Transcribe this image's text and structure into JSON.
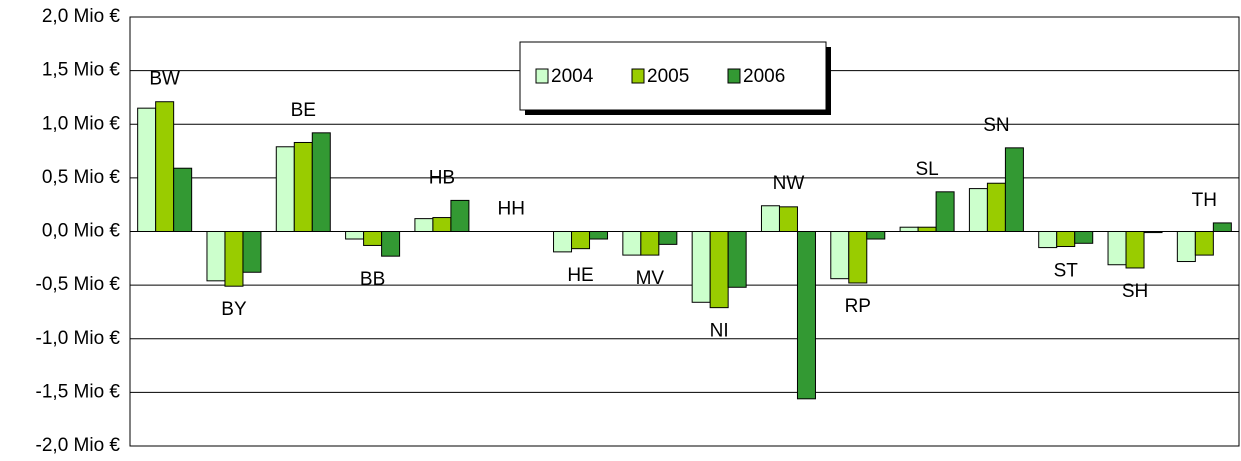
{
  "chart_data": {
    "type": "bar",
    "categories": [
      "BW",
      "BY",
      "BE",
      "BB",
      "HB",
      "HH",
      "HE",
      "MV",
      "NI",
      "NW",
      "RP",
      "SL",
      "SN",
      "ST",
      "SH",
      "TH"
    ],
    "series": [
      {
        "name": "2004",
        "color": "#ccffcc",
        "values": [
          1.15,
          -0.46,
          0.79,
          -0.07,
          0.12,
          0,
          -0.19,
          -0.22,
          -0.66,
          0.24,
          -0.44,
          0.04,
          0.4,
          -0.15,
          -0.31,
          -0.28
        ]
      },
      {
        "name": "2005",
        "color": "#99cc00",
        "values": [
          1.21,
          -0.51,
          0.83,
          -0.13,
          0.13,
          0,
          -0.16,
          -0.22,
          -0.71,
          0.23,
          -0.48,
          0.04,
          0.45,
          -0.14,
          -0.34,
          -0.22
        ]
      },
      {
        "name": "2006",
        "color": "#339933",
        "values": [
          0.59,
          -0.38,
          0.92,
          -0.23,
          0.29,
          0,
          -0.07,
          -0.12,
          -0.52,
          -1.56,
          -0.07,
          0.37,
          0.78,
          -0.11,
          -0.01,
          0.08
        ]
      }
    ],
    "ylim": [
      -2,
      2
    ],
    "yticks": [
      {
        "value": -2,
        "label": "-2,0 Mio €"
      },
      {
        "value": -1.5,
        "label": "-1,5 Mio €"
      },
      {
        "value": -1,
        "label": "-1,0 Mio €"
      },
      {
        "value": -0.5,
        "label": "-0,5 Mio €"
      },
      {
        "value": 0,
        "label": "0,0 Mio €"
      },
      {
        "value": 0.5,
        "label": "0,5 Mio €"
      },
      {
        "value": 1,
        "label": "1,0 Mio €"
      },
      {
        "value": 1.5,
        "label": "1,5 Mio €"
      },
      {
        "value": 2,
        "label": "2,0 Mio €"
      }
    ],
    "grid": true,
    "legend": "top"
  }
}
